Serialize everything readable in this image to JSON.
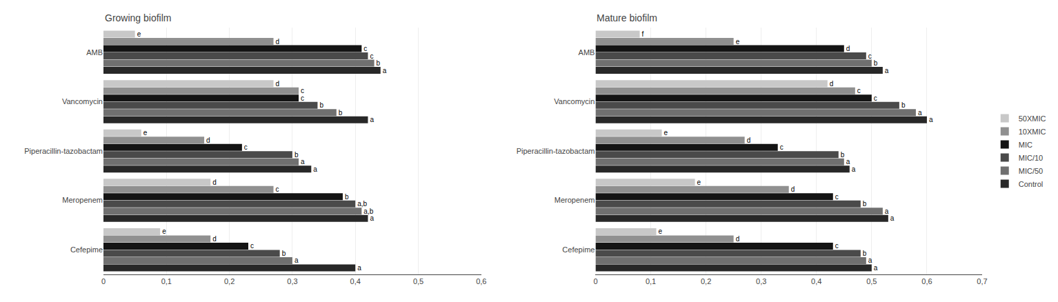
{
  "chart_data": [
    {
      "type": "bar",
      "orientation": "horizontal",
      "title": "Growing biofilm",
      "categories": [
        "AMB",
        "Vancomycin",
        "Piperacillin-tazobactam",
        "Meropenem",
        "Cefepime"
      ],
      "series": [
        {
          "name": "50XMIC",
          "color": "#c8c8c8",
          "values": [
            0.05,
            0.27,
            0.06,
            0.17,
            0.09
          ],
          "annotations": [
            "e",
            "d",
            "e",
            "d",
            "e"
          ]
        },
        {
          "name": "10XMIC",
          "color": "#909090",
          "values": [
            0.27,
            0.31,
            0.16,
            0.27,
            0.17
          ],
          "annotations": [
            "d",
            "c",
            "d",
            "c",
            "d"
          ]
        },
        {
          "name": "MIC",
          "color": "#141414",
          "values": [
            0.41,
            0.31,
            0.22,
            0.38,
            0.23
          ],
          "annotations": [
            "c",
            "c",
            "c",
            "b",
            "c"
          ]
        },
        {
          "name": "MIC/10",
          "color": "#4a4a4a",
          "values": [
            0.42,
            0.34,
            0.3,
            0.4,
            0.28
          ],
          "annotations": [
            "c",
            "b",
            "b",
            "a,b",
            "b"
          ]
        },
        {
          "name": "MIC/50",
          "color": "#707070",
          "values": [
            0.43,
            0.37,
            0.31,
            0.41,
            0.3
          ],
          "annotations": [
            "b",
            "b",
            "a",
            "a,b",
            "a"
          ]
        },
        {
          "name": "Control",
          "color": "#282828",
          "values": [
            0.44,
            0.42,
            0.33,
            0.42,
            0.4
          ],
          "annotations": [
            "a",
            "a",
            "a",
            "a",
            "a"
          ]
        }
      ],
      "xlim": [
        0,
        0.6
      ],
      "xticks": [
        0,
        {
          "value": 0.1,
          "label": "0,1"
        },
        {
          "value": 0.2,
          "label": "0,2"
        },
        {
          "value": 0.3,
          "label": "0,3"
        },
        {
          "value": 0.4,
          "label": "0,4"
        },
        {
          "value": 0.5,
          "label": "0,5"
        },
        {
          "value": 0.6,
          "label": "0,6"
        }
      ],
      "grid": true
    },
    {
      "type": "bar",
      "orientation": "horizontal",
      "title": "Mature biofilm",
      "categories": [
        "AMB",
        "Vancomycin",
        "Piperacillin-tazobactam",
        "Meropenem",
        "Cefepime"
      ],
      "series": [
        {
          "name": "50XMIC",
          "color": "#c8c8c8",
          "values": [
            0.08,
            0.42,
            0.12,
            0.18,
            0.11
          ],
          "annotations": [
            "f",
            "d",
            "e",
            "e",
            "e"
          ]
        },
        {
          "name": "10XMIC",
          "color": "#909090",
          "values": [
            0.25,
            0.47,
            0.27,
            0.35,
            0.25
          ],
          "annotations": [
            "e",
            "c",
            "d",
            "d",
            "d"
          ]
        },
        {
          "name": "MIC",
          "color": "#141414",
          "values": [
            0.45,
            0.5,
            0.33,
            0.43,
            0.43
          ],
          "annotations": [
            "d",
            "c",
            "c",
            "c",
            "c"
          ]
        },
        {
          "name": "MIC/10",
          "color": "#4a4a4a",
          "values": [
            0.49,
            0.55,
            0.44,
            0.48,
            0.48
          ],
          "annotations": [
            "c",
            "b",
            "b",
            "b",
            "b"
          ]
        },
        {
          "name": "MIC/50",
          "color": "#707070",
          "values": [
            0.5,
            0.58,
            0.45,
            0.52,
            0.49
          ],
          "annotations": [
            "b",
            "a",
            "a",
            "a",
            "a"
          ]
        },
        {
          "name": "Control",
          "color": "#282828",
          "values": [
            0.52,
            0.6,
            0.46,
            0.53,
            0.5
          ],
          "annotations": [
            "a",
            "a",
            "a",
            "a",
            "a"
          ]
        }
      ],
      "xlim": [
        0,
        0.7
      ],
      "xticks": [
        0,
        {
          "value": 0.1,
          "label": "0,1"
        },
        {
          "value": 0.2,
          "label": "0,2"
        },
        {
          "value": 0.3,
          "label": "0,3"
        },
        {
          "value": 0.4,
          "label": "0,4"
        },
        {
          "value": 0.5,
          "label": "0,5"
        },
        {
          "value": 0.6,
          "label": "0,6"
        },
        {
          "value": 0.7,
          "label": "0,7"
        }
      ],
      "grid": true,
      "legend": "right"
    }
  ]
}
